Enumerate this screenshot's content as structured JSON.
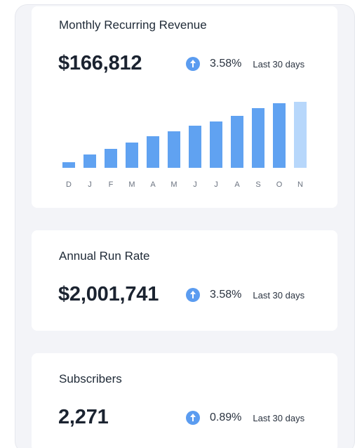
{
  "cards": [
    {
      "title": "Monthly Recurring Revenue",
      "value": "$166,812",
      "delta": {
        "percent": "3.58%",
        "period": "Last 30 days",
        "icon": "arrow-up-circle-icon"
      }
    },
    {
      "title": "Annual Run Rate",
      "value": "$2,001,741",
      "delta": {
        "percent": "3.58%",
        "period": "Last 30 days",
        "icon": "arrow-up-circle-icon"
      }
    },
    {
      "title": "Subscribers",
      "value": "2,271",
      "delta": {
        "percent": "0.89%",
        "period": "Last 30 days",
        "icon": "arrow-up-circle-icon"
      }
    }
  ],
  "colors": {
    "bar": "#60a2f1",
    "bar_current": "#b7d7fb",
    "accent": "#5b9cf0",
    "background": "#f3f4f8"
  },
  "chart_data": {
    "type": "bar",
    "categories": [
      "D",
      "J",
      "F",
      "M",
      "A",
      "M",
      "J",
      "J",
      "A",
      "S",
      "O",
      "N"
    ],
    "values": [
      8,
      19,
      27,
      36,
      45,
      52,
      60,
      66,
      74,
      85,
      92,
      94
    ],
    "ylim": [
      0,
      100
    ],
    "grid": false,
    "legend": "none"
  }
}
